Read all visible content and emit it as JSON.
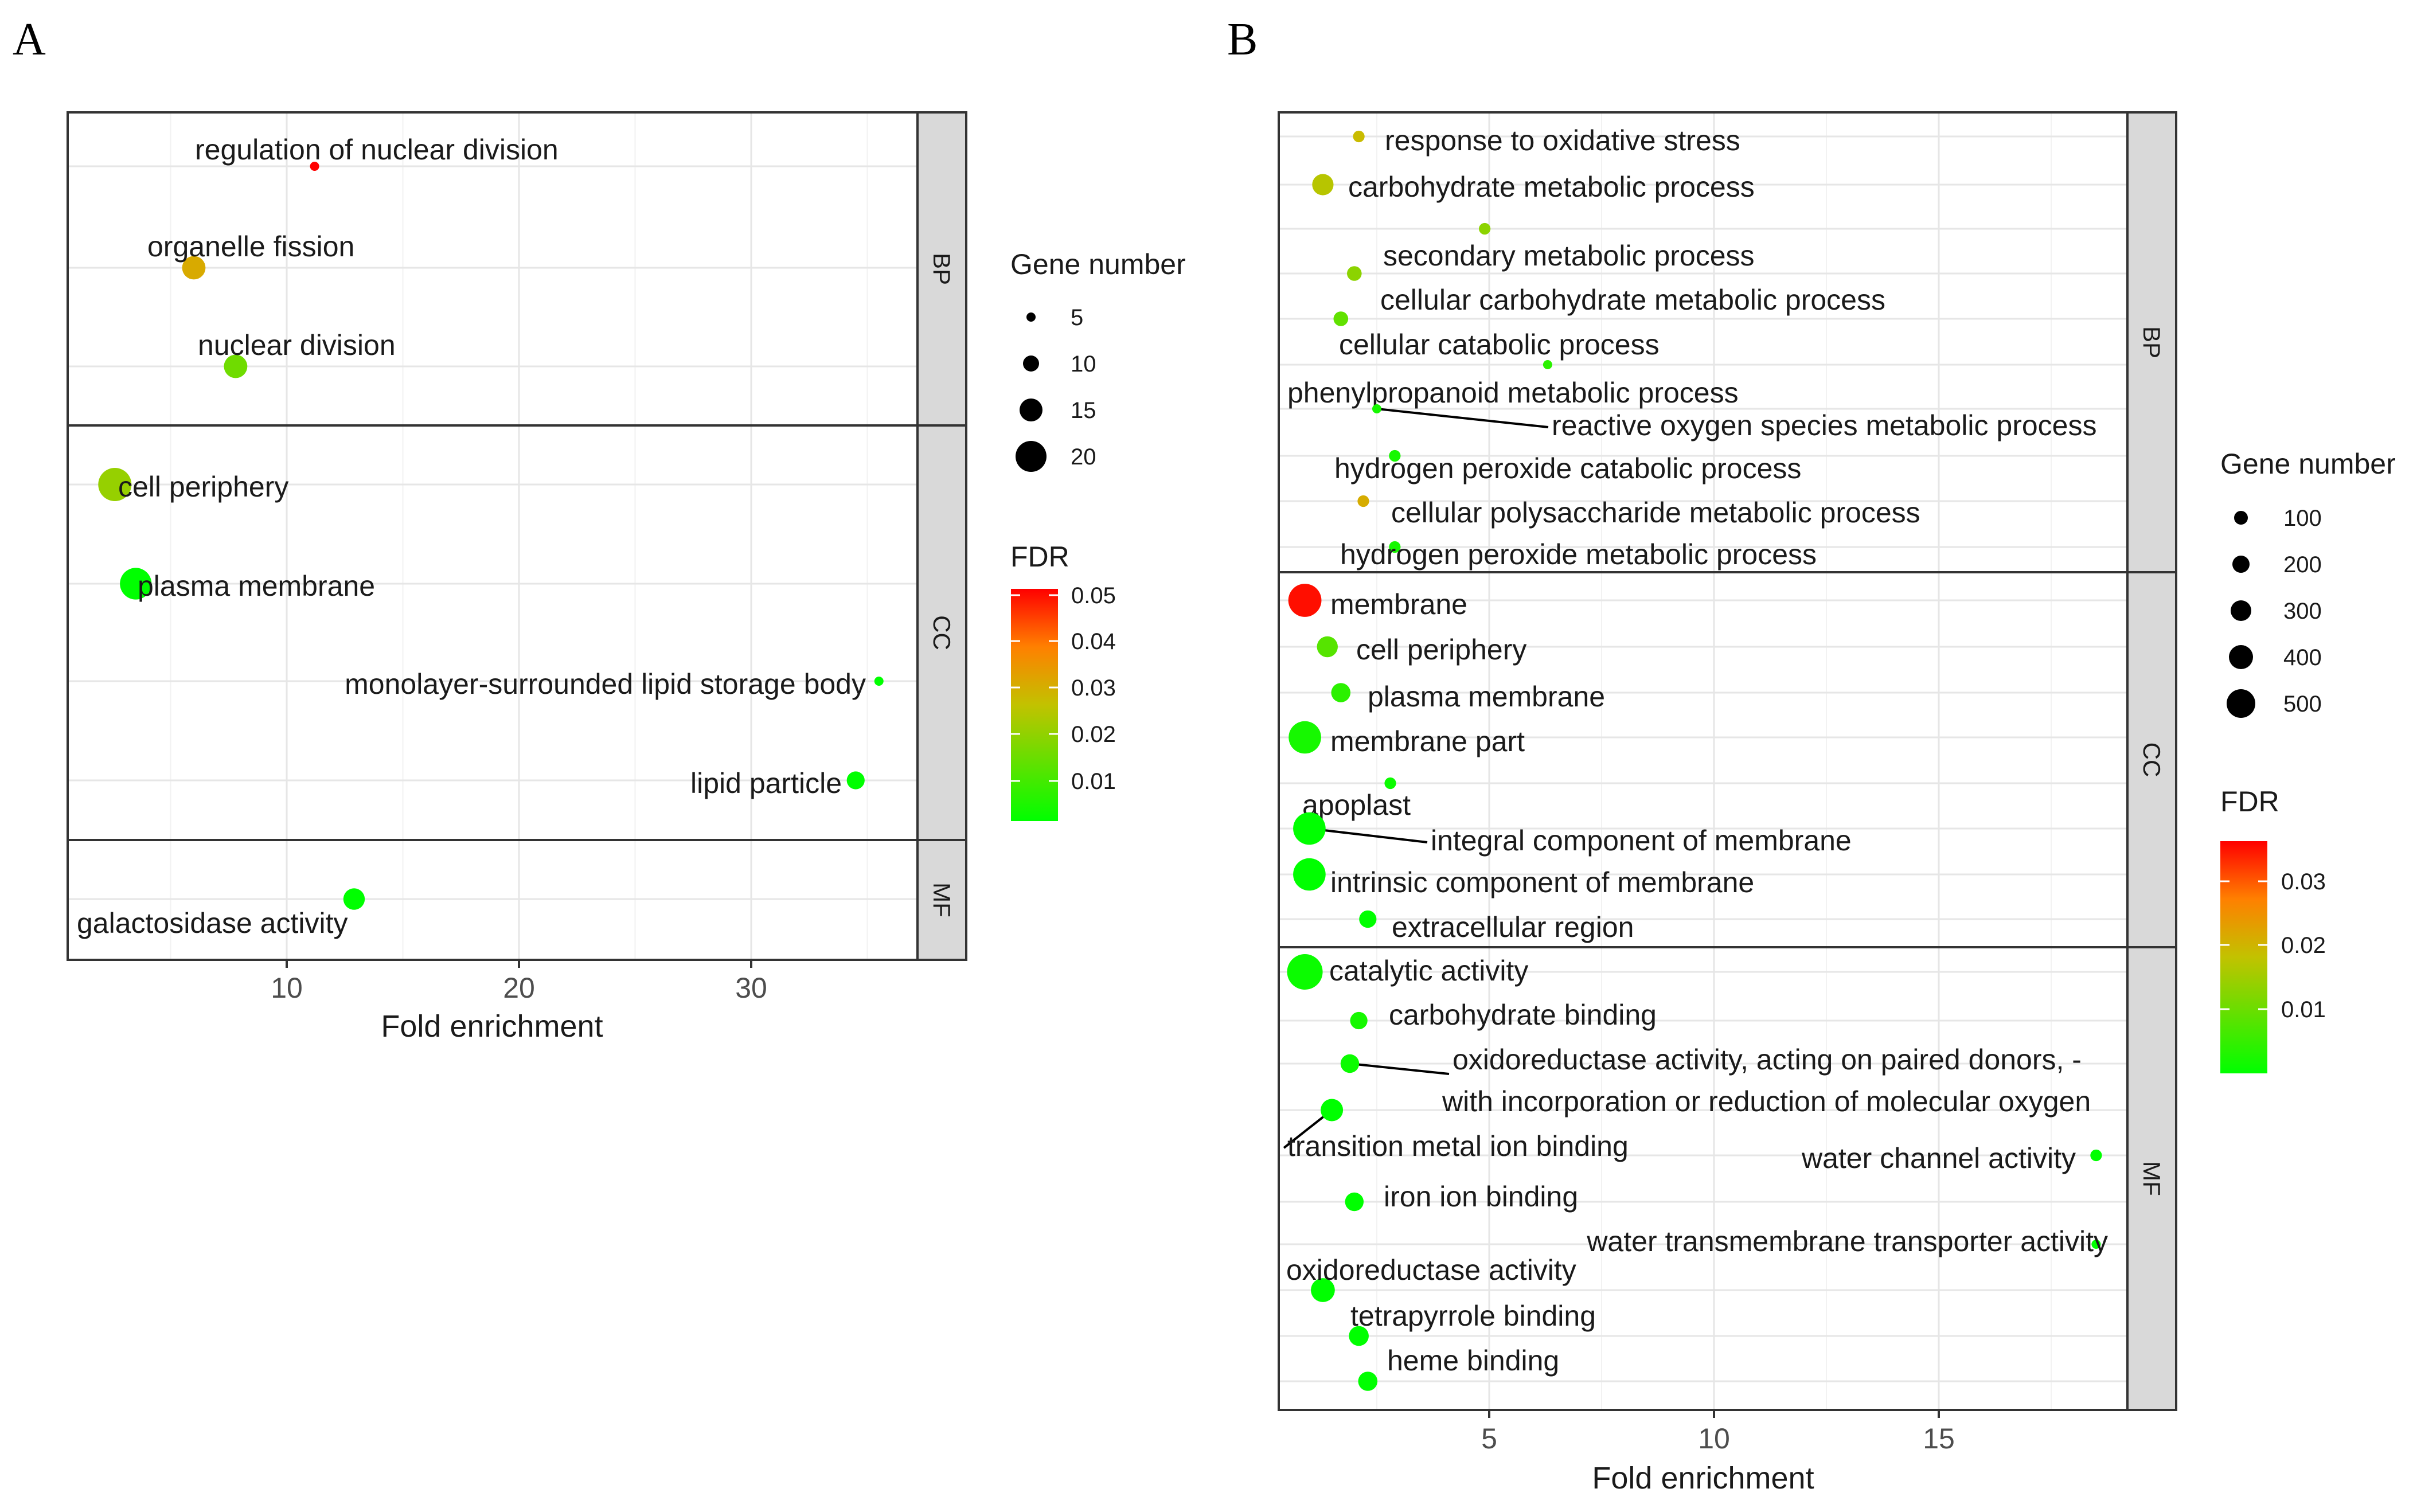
{
  "chart_data": [
    {
      "panel": "A",
      "type": "scatter",
      "xlabel": "Fold enrichment",
      "xlim": [
        1,
        38
      ],
      "xticks": [
        10,
        20,
        30
      ],
      "facets": [
        {
          "name": "BP",
          "points": [
            {
              "term": "regulation of nuclear division",
              "x": 11.2,
              "gene_number": 2,
              "fdr": 0.05
            },
            {
              "term": "organelle fission",
              "x": 6.0,
              "gene_number": 10,
              "fdr": 0.03
            },
            {
              "term": "nuclear division",
              "x": 7.8,
              "gene_number": 10,
              "fdr": 0.015
            }
          ]
        },
        {
          "name": "CC",
          "points": [
            {
              "term": "cell periphery",
              "x": 2.6,
              "gene_number": 25,
              "fdr": 0.02
            },
            {
              "term": "plasma membrane",
              "x": 3.5,
              "gene_number": 22,
              "fdr": 0.001
            },
            {
              "term": "monolayer-surrounded lipid storage body",
              "x": 35.5,
              "gene_number": 2,
              "fdr": 0.001
            },
            {
              "term": "lipid particle",
              "x": 34.5,
              "gene_number": 5,
              "fdr": 0.001
            }
          ]
        },
        {
          "name": "MF",
          "points": [
            {
              "term": "galactosidase activity",
              "x": 12.9,
              "gene_number": 8,
              "fdr": 0.001
            }
          ]
        }
      ],
      "legend": {
        "size_title": "Gene number",
        "size_values": [
          5,
          10,
          15,
          20
        ],
        "color_title": "FDR",
        "color_ticks": [
          "0.05",
          "0.04",
          "0.03",
          "0.02",
          "0.01"
        ],
        "color_range": [
          0.001,
          0.05
        ]
      }
    },
    {
      "panel": "B",
      "type": "scatter",
      "xlabel": "Fold enrichment",
      "xlim": [
        0,
        19
      ],
      "xticks": [
        5,
        10,
        15
      ],
      "facets": [
        {
          "name": "BP",
          "points": [
            {
              "term": "response to oxidative stress",
              "x": 2.1,
              "gene_number": 20,
              "fdr": 0.02
            },
            {
              "term": "carbohydrate metabolic process",
              "x": 1.3,
              "gene_number": 140,
              "fdr": 0.018
            },
            {
              "term": "secondary metabolic process",
              "x": 4.9,
              "gene_number": 20,
              "fdr": 0.014
            },
            {
              "term": "cellular carbohydrate metabolic process",
              "x": 2.0,
              "gene_number": 40,
              "fdr": 0.014
            },
            {
              "term": "cellular catabolic process",
              "x": 1.7,
              "gene_number": 40,
              "fdr": 0.01
            },
            {
              "term": "phenylpropanoid metabolic process",
              "x": 6.3,
              "gene_number": 15,
              "fdr": 0.005
            },
            {
              "term": "reactive oxygen species metabolic process",
              "x": 2.5,
              "gene_number": 15,
              "fdr": 0.003
            },
            {
              "term": "hydrogen peroxide catabolic process",
              "x": 2.9,
              "gene_number": 20,
              "fdr": 0.003
            },
            {
              "term": "cellular polysaccharide metabolic process",
              "x": 2.2,
              "gene_number": 20,
              "fdr": 0.022
            },
            {
              "term": "hydrogen peroxide metabolic process",
              "x": 2.9,
              "gene_number": 20,
              "fdr": 0.003
            }
          ]
        },
        {
          "name": "CC",
          "points": [
            {
              "term": "membrane",
              "x": 0.9,
              "gene_number": 500,
              "fdr": 0.036
            },
            {
              "term": "cell periphery",
              "x": 1.4,
              "gene_number": 130,
              "fdr": 0.009
            },
            {
              "term": "plasma membrane",
              "x": 1.7,
              "gene_number": 100,
              "fdr": 0.005
            },
            {
              "term": "membrane part",
              "x": 0.9,
              "gene_number": 470,
              "fdr": 0.003
            },
            {
              "term": "apoplast",
              "x": 2.8,
              "gene_number": 20,
              "fdr": 0.002
            },
            {
              "term": "integral component of membrane",
              "x": 1.0,
              "gene_number": 470,
              "fdr": 0.001
            },
            {
              "term": "intrinsic component of membrane",
              "x": 1.0,
              "gene_number": 470,
              "fdr": 0.001
            },
            {
              "term": "extracellular region",
              "x": 2.3,
              "gene_number": 70,
              "fdr": 0.001
            }
          ]
        },
        {
          "name": "MF",
          "points": [
            {
              "term": "catalytic activity",
              "x": 0.9,
              "gene_number": 600,
              "fdr": 0.002
            },
            {
              "term": "carbohydrate binding",
              "x": 2.1,
              "gene_number": 70,
              "fdr": 0.003
            },
            {
              "term": "oxidoreductase activity, acting on paired donors, -",
              "term_line2": "with incorporation or reduction of molecular oxygen",
              "x": 1.9,
              "gene_number": 90,
              "fdr": 0.002
            },
            {
              "term": "transition metal ion binding",
              "x": 1.5,
              "gene_number": 160,
              "fdr": 0.001
            },
            {
              "term": "water channel activity",
              "x": 18.5,
              "gene_number": 20,
              "fdr": 0.001
            },
            {
              "term": "iron ion binding",
              "x": 2.0,
              "gene_number": 90,
              "fdr": 0.001
            },
            {
              "term": "water transmembrane transporter activity",
              "x": 18.5,
              "gene_number": 15,
              "fdr": 0.001
            },
            {
              "term": "oxidoreductase activity",
              "x": 1.3,
              "gene_number": 200,
              "fdr": 0.001
            },
            {
              "term": "tetrapyrrole binding",
              "x": 2.1,
              "gene_number": 110,
              "fdr": 0.001
            },
            {
              "term": "heme binding",
              "x": 2.3,
              "gene_number": 100,
              "fdr": 0.001
            }
          ]
        }
      ],
      "legend": {
        "size_title": "Gene number",
        "size_values": [
          100,
          200,
          300,
          400,
          500
        ],
        "color_title": "FDR",
        "color_ticks": [
          "0.03",
          "0.02",
          "0.01"
        ],
        "color_range": [
          0.001,
          0.037
        ]
      }
    }
  ]
}
